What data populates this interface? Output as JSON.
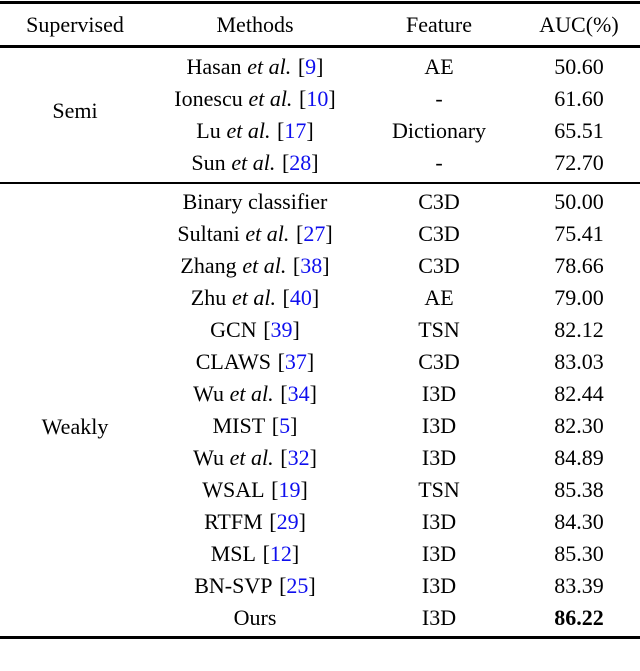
{
  "colors": {
    "text": "#000000",
    "citation": "#0e0eee",
    "rule": "#000000",
    "background": "#ffffff"
  },
  "table": {
    "columns": [
      "Supervised",
      "Methods",
      "Feature",
      "AUC(%)"
    ],
    "cite_brackets": {
      "open": "[",
      "close": "]"
    },
    "groups": [
      {
        "label": "Semi",
        "rows": [
          {
            "method": {
              "name": "Hasan",
              "etal": "et al.",
              "cite": "9"
            },
            "feature": "AE",
            "auc": "50.60"
          },
          {
            "method": {
              "name": "Ionescu",
              "etal": "et al.",
              "cite": "10"
            },
            "feature": "-",
            "auc": "61.60"
          },
          {
            "method": {
              "name": "Lu",
              "etal": "et al.",
              "cite": "17"
            },
            "feature": "Dictionary",
            "auc": "65.51"
          },
          {
            "method": {
              "name": "Sun",
              "etal": "et al.",
              "cite": "28"
            },
            "feature": "-",
            "auc": "72.70"
          }
        ]
      },
      {
        "label": "Weakly",
        "rows": [
          {
            "method": {
              "name": "Binary classifier"
            },
            "feature": "C3D",
            "auc": "50.00"
          },
          {
            "method": {
              "name": "Sultani",
              "etal": "et al.",
              "cite": "27"
            },
            "feature": "C3D",
            "auc": "75.41"
          },
          {
            "method": {
              "name": "Zhang",
              "etal": "et al.",
              "cite": "38"
            },
            "feature": "C3D",
            "auc": "78.66"
          },
          {
            "method": {
              "name": "Zhu",
              "etal": "et al.",
              "cite": "40"
            },
            "feature": "AE",
            "auc": "79.00"
          },
          {
            "method": {
              "name": "GCN",
              "cite": "39"
            },
            "feature": "TSN",
            "auc": "82.12"
          },
          {
            "method": {
              "name": "CLAWS",
              "cite": "37"
            },
            "feature": "C3D",
            "auc": "83.03"
          },
          {
            "method": {
              "name": "Wu",
              "etal": "et al.",
              "cite": "34"
            },
            "feature": "I3D",
            "auc": "82.44"
          },
          {
            "method": {
              "name": "MIST",
              "cite": "5"
            },
            "feature": "I3D",
            "auc": "82.30"
          },
          {
            "method": {
              "name": "Wu",
              "etal": "et al.",
              "cite": "32"
            },
            "feature": "I3D",
            "auc": "84.89"
          },
          {
            "method": {
              "name": "WSAL",
              "cite": "19"
            },
            "feature": "TSN",
            "auc": "85.38"
          },
          {
            "method": {
              "name": "RTFM",
              "cite": "29"
            },
            "feature": "I3D",
            "auc": "84.30"
          },
          {
            "method": {
              "name": "MSL",
              "cite": "12"
            },
            "feature": "I3D",
            "auc": "85.30"
          },
          {
            "method": {
              "name": "BN-SVP",
              "cite": "25"
            },
            "feature": "I3D",
            "auc": "83.39"
          },
          {
            "method": {
              "name": "Ours"
            },
            "feature": "I3D",
            "auc": "86.22",
            "auc_bold": true
          }
        ]
      }
    ]
  }
}
